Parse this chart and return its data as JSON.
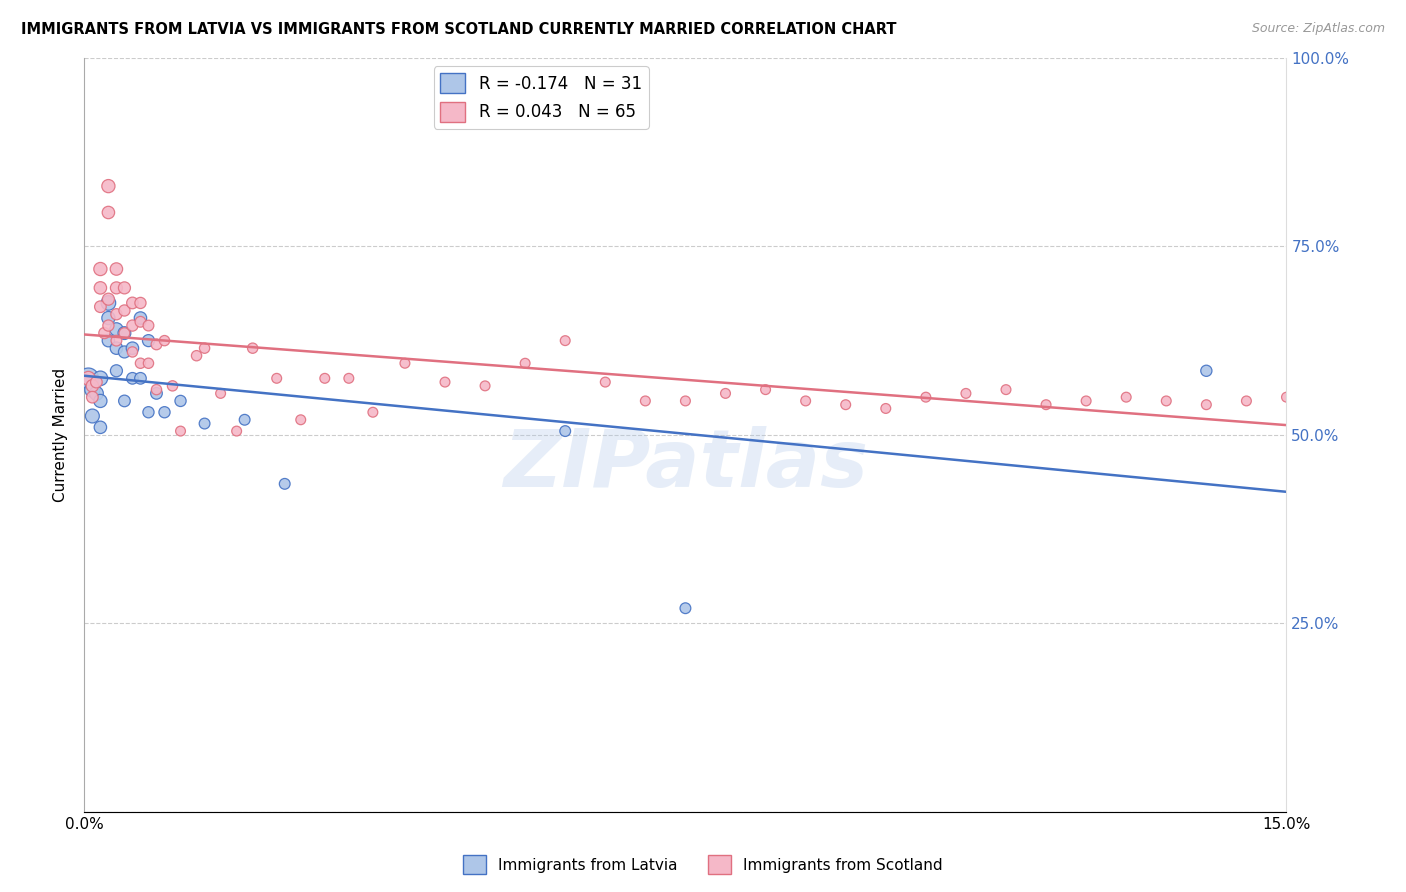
{
  "title": "IMMIGRANTS FROM LATVIA VS IMMIGRANTS FROM SCOTLAND CURRENTLY MARRIED CORRELATION CHART",
  "source": "Source: ZipAtlas.com",
  "ylabel": "Currently Married",
  "xmin": 0.0,
  "xmax": 0.15,
  "ymin": 0.0,
  "ymax": 1.0,
  "yticks": [
    0.0,
    0.25,
    0.5,
    0.75,
    1.0
  ],
  "ytick_labels": [
    "",
    "25.0%",
    "50.0%",
    "75.0%",
    "100.0%"
  ],
  "latvia_R": -0.174,
  "latvia_N": 31,
  "scotland_R": 0.043,
  "scotland_N": 65,
  "latvia_color": "#aec6e8",
  "scotland_color": "#f5b8c8",
  "latvia_line_color": "#4472c4",
  "scotland_line_color": "#e07080",
  "watermark": "ZIPatlas",
  "latvia_x": [
    0.0005,
    0.001,
    0.001,
    0.0015,
    0.002,
    0.002,
    0.002,
    0.003,
    0.003,
    0.003,
    0.004,
    0.004,
    0.004,
    0.005,
    0.005,
    0.005,
    0.006,
    0.006,
    0.007,
    0.007,
    0.008,
    0.008,
    0.009,
    0.01,
    0.012,
    0.015,
    0.02,
    0.025,
    0.06,
    0.075,
    0.14
  ],
  "latvia_y": [
    0.575,
    0.56,
    0.525,
    0.555,
    0.575,
    0.545,
    0.51,
    0.675,
    0.655,
    0.625,
    0.64,
    0.615,
    0.585,
    0.635,
    0.61,
    0.545,
    0.615,
    0.575,
    0.655,
    0.575,
    0.625,
    0.53,
    0.555,
    0.53,
    0.545,
    0.515,
    0.52,
    0.435,
    0.505,
    0.27,
    0.585
  ],
  "latvia_size": [
    220,
    120,
    100,
    100,
    110,
    90,
    80,
    110,
    90,
    80,
    90,
    80,
    75,
    85,
    75,
    70,
    80,
    70,
    80,
    70,
    75,
    65,
    70,
    65,
    65,
    60,
    60,
    60,
    60,
    60,
    65
  ],
  "scotland_x": [
    0.0005,
    0.001,
    0.001,
    0.0015,
    0.002,
    0.002,
    0.002,
    0.0025,
    0.003,
    0.003,
    0.003,
    0.003,
    0.004,
    0.004,
    0.004,
    0.004,
    0.005,
    0.005,
    0.005,
    0.006,
    0.006,
    0.006,
    0.007,
    0.007,
    0.007,
    0.008,
    0.008,
    0.009,
    0.009,
    0.01,
    0.011,
    0.012,
    0.014,
    0.015,
    0.017,
    0.019,
    0.021,
    0.024,
    0.027,
    0.03,
    0.033,
    0.036,
    0.04,
    0.045,
    0.05,
    0.055,
    0.06,
    0.065,
    0.07,
    0.075,
    0.08,
    0.085,
    0.09,
    0.095,
    0.1,
    0.105,
    0.11,
    0.115,
    0.12,
    0.125,
    0.13,
    0.135,
    0.14,
    0.145,
    0.15
  ],
  "scotland_y": [
    0.575,
    0.565,
    0.55,
    0.57,
    0.72,
    0.695,
    0.67,
    0.635,
    0.83,
    0.795,
    0.68,
    0.645,
    0.72,
    0.695,
    0.66,
    0.625,
    0.695,
    0.665,
    0.635,
    0.675,
    0.645,
    0.61,
    0.675,
    0.65,
    0.595,
    0.645,
    0.595,
    0.62,
    0.56,
    0.625,
    0.565,
    0.505,
    0.605,
    0.615,
    0.555,
    0.505,
    0.615,
    0.575,
    0.52,
    0.575,
    0.575,
    0.53,
    0.595,
    0.57,
    0.565,
    0.595,
    0.625,
    0.57,
    0.545,
    0.545,
    0.555,
    0.56,
    0.545,
    0.54,
    0.535,
    0.55,
    0.555,
    0.56,
    0.54,
    0.545,
    0.55,
    0.545,
    0.54,
    0.545,
    0.55
  ],
  "scotland_size": [
    100,
    80,
    70,
    70,
    90,
    80,
    70,
    65,
    90,
    80,
    75,
    65,
    80,
    75,
    65,
    60,
    75,
    65,
    60,
    70,
    65,
    55,
    65,
    60,
    55,
    60,
    55,
    60,
    55,
    55,
    55,
    50,
    55,
    55,
    50,
    50,
    55,
    50,
    50,
    50,
    50,
    50,
    50,
    50,
    50,
    50,
    50,
    50,
    50,
    50,
    50,
    50,
    50,
    50,
    50,
    50,
    50,
    50,
    50,
    50,
    50,
    50,
    50,
    50,
    50
  ]
}
